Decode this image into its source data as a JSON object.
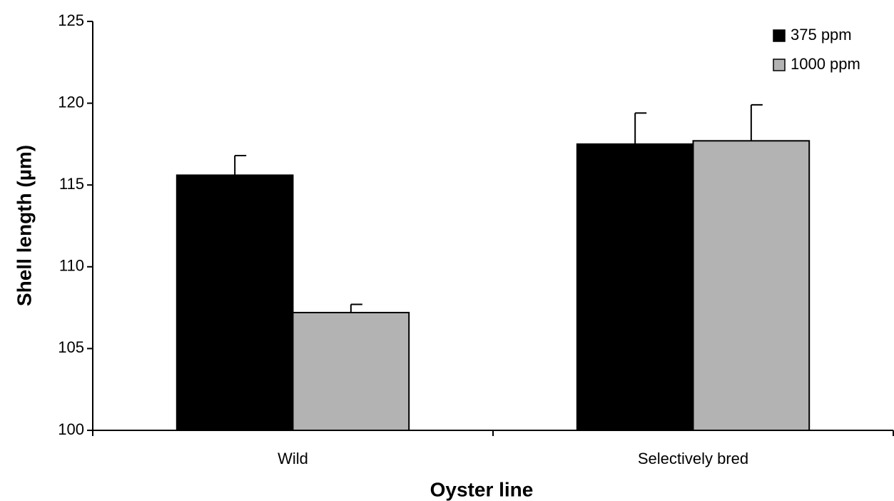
{
  "chart_data": {
    "type": "bar",
    "x_label": "Oyster line",
    "y_label": "Shell length (µm)",
    "categories": [
      "Wild",
      "Selectively bred"
    ],
    "series": [
      {
        "name": "375 ppm",
        "color": "#000000",
        "values": [
          115.6,
          117.5
        ],
        "errors": [
          1.2,
          1.9
        ]
      },
      {
        "name": "1000 ppm",
        "color": "#b3b3b3",
        "values": [
          107.2,
          117.7
        ],
        "errors": [
          0.5,
          2.2
        ]
      }
    ],
    "ylim": [
      100,
      125
    ],
    "yticks": [
      100,
      105,
      110,
      115,
      120,
      125
    ],
    "legend": "upper right"
  }
}
